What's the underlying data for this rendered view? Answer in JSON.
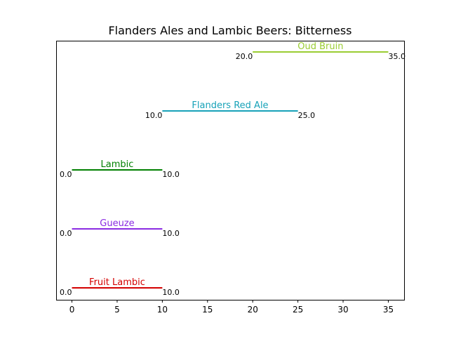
{
  "chart_data": {
    "type": "range",
    "title": "Flanders Ales and Lambic Beers: Bitterness",
    "xlabel": "",
    "ylabel": "",
    "xlim": [
      -1.75,
      36.75
    ],
    "xticks": [
      "0",
      "5",
      "10",
      "15",
      "20",
      "25",
      "30",
      "35"
    ],
    "grid": false,
    "series": [
      {
        "name": "Fruit Lambic",
        "start": 0.0,
        "end": 10.0,
        "start_label": "0.0",
        "end_label": "10.0",
        "color": "#d40000"
      },
      {
        "name": "Gueuze",
        "start": 0.0,
        "end": 10.0,
        "start_label": "0.0",
        "end_label": "10.0",
        "color": "#8a2be2"
      },
      {
        "name": "Lambic",
        "start": 0.0,
        "end": 10.0,
        "start_label": "0.0",
        "end_label": "10.0",
        "color": "#008000"
      },
      {
        "name": "Flanders Red Ale",
        "start": 10.0,
        "end": 25.0,
        "start_label": "10.0",
        "end_label": "25.0",
        "color": "#17a2b8"
      },
      {
        "name": "Oud Bruin",
        "start": 20.0,
        "end": 35.0,
        "start_label": "20.0",
        "end_label": "35.0",
        "color": "#9acd32"
      }
    ]
  }
}
